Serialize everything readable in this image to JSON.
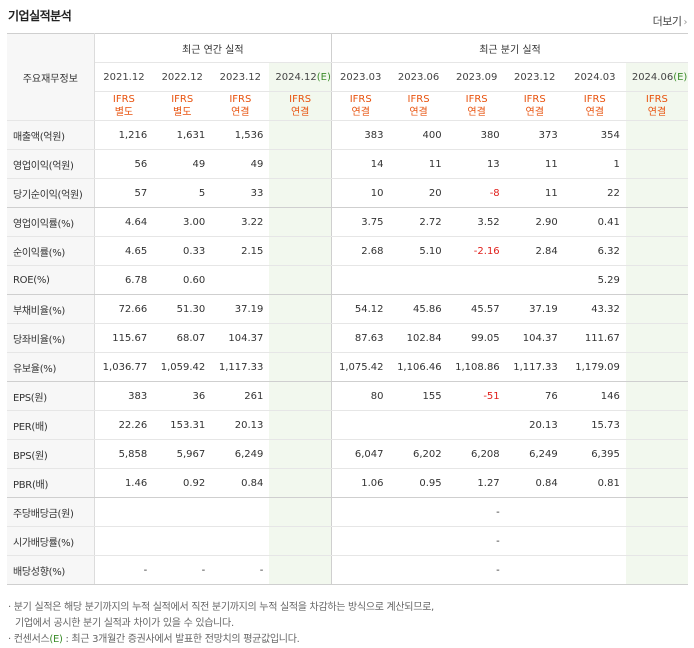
{
  "header": {
    "title": "기업실적분석",
    "more_label": "더보기"
  },
  "table": {
    "row_header_label": "주요재무정보",
    "annual_group_label": "최근 연간 실적",
    "quarter_group_label": "최근 분기 실적",
    "periods": [
      {
        "label": "2021.12",
        "ifrs": "IFRS",
        "basis": "별도",
        "estimate": false
      },
      {
        "label": "2022.12",
        "ifrs": "IFRS",
        "basis": "별도",
        "estimate": false
      },
      {
        "label": "2023.12",
        "ifrs": "IFRS",
        "basis": "연결",
        "estimate": false
      },
      {
        "label": "2024.12",
        "est_mark": "(E)",
        "ifrs": "IFRS",
        "basis": "연결",
        "estimate": true
      },
      {
        "label": "2023.03",
        "ifrs": "IFRS",
        "basis": "연결",
        "estimate": false
      },
      {
        "label": "2023.06",
        "ifrs": "IFRS",
        "basis": "연결",
        "estimate": false
      },
      {
        "label": "2023.09",
        "ifrs": "IFRS",
        "basis": "연결",
        "estimate": false
      },
      {
        "label": "2023.12",
        "ifrs": "IFRS",
        "basis": "연결",
        "estimate": false
      },
      {
        "label": "2024.03",
        "ifrs": "IFRS",
        "basis": "연결",
        "estimate": false
      },
      {
        "label": "2024.06",
        "est_mark": "(E)",
        "ifrs": "IFRS",
        "basis": "연결",
        "estimate": true
      }
    ],
    "rows": [
      {
        "label": "매출액(억원)",
        "values": [
          "1,216",
          "1,631",
          "1,536",
          "",
          "383",
          "400",
          "380",
          "373",
          "354",
          ""
        ]
      },
      {
        "label": "영업이익(억원)",
        "values": [
          "56",
          "49",
          "49",
          "",
          "14",
          "11",
          "13",
          "11",
          "1",
          ""
        ]
      },
      {
        "label": "당기순이익(억원)",
        "values": [
          "57",
          "5",
          "33",
          "",
          "10",
          "20",
          "-8",
          "11",
          "22",
          ""
        ]
      },
      {
        "label": "영업이익률(%)",
        "values": [
          "4.64",
          "3.00",
          "3.22",
          "",
          "3.75",
          "2.72",
          "3.52",
          "2.90",
          "0.41",
          ""
        ]
      },
      {
        "label": "순이익률(%)",
        "values": [
          "4.65",
          "0.33",
          "2.15",
          "",
          "2.68",
          "5.10",
          "-2.16",
          "2.84",
          "6.32",
          ""
        ]
      },
      {
        "label": "ROE(%)",
        "values": [
          "6.78",
          "0.60",
          "",
          "",
          "",
          "",
          "",
          "",
          "5.29",
          ""
        ]
      },
      {
        "label": "부채비율(%)",
        "values": [
          "72.66",
          "51.30",
          "37.19",
          "",
          "54.12",
          "45.86",
          "45.57",
          "37.19",
          "43.32",
          ""
        ]
      },
      {
        "label": "당좌비율(%)",
        "values": [
          "115.67",
          "68.07",
          "104.37",
          "",
          "87.63",
          "102.84",
          "99.05",
          "104.37",
          "111.67",
          ""
        ]
      },
      {
        "label": "유보율(%)",
        "values": [
          "1,036.77",
          "1,059.42",
          "1,117.33",
          "",
          "1,075.42",
          "1,106.46",
          "1,108.86",
          "1,117.33",
          "1,179.09",
          ""
        ]
      },
      {
        "label": "EPS(원)",
        "values": [
          "383",
          "36",
          "261",
          "",
          "80",
          "155",
          "-51",
          "76",
          "146",
          ""
        ]
      },
      {
        "label": "PER(배)",
        "values": [
          "22.26",
          "153.31",
          "20.13",
          "",
          "",
          "",
          "",
          "20.13",
          "15.73",
          ""
        ]
      },
      {
        "label": "BPS(원)",
        "values": [
          "5,858",
          "5,967",
          "6,249",
          "",
          "6,047",
          "6,202",
          "6,208",
          "6,249",
          "6,395",
          ""
        ]
      },
      {
        "label": "PBR(배)",
        "values": [
          "1.46",
          "0.92",
          "0.84",
          "",
          "1.06",
          "0.95",
          "1.27",
          "0.84",
          "0.81",
          ""
        ]
      },
      {
        "label": "주당배당금(원)",
        "values": [
          "",
          "",
          "",
          "",
          "",
          "",
          "-",
          "",
          "",
          ""
        ]
      },
      {
        "label": "시가배당률(%)",
        "values": [
          "",
          "",
          "",
          "",
          "",
          "",
          "-",
          "",
          "",
          ""
        ]
      },
      {
        "label": "배당성향(%)",
        "values": [
          "-",
          "-",
          "-",
          "",
          "",
          "",
          "-",
          "",
          "",
          ""
        ]
      }
    ]
  },
  "notes": {
    "line1": "분기 실적은 해당 분기까지의 누적 실적에서 직전 분기까지의 누적 실적을 차감하는 방식으로 계산되므로,",
    "line2": "기업에서 공시한 분기 실적과 차이가 있을 수 있습니다.",
    "line3_prefix": "컨센서스",
    "line3_mark": "(E)",
    "line3_rest": " : 최근 3개월간 증권사에서 발표한 전망치의 평균값입니다."
  },
  "colors": {
    "ifrs": "#e8530f",
    "negative": "#e0201c",
    "estimate_bg": "#f2f8ee",
    "estimate_mark": "#3b8c2a"
  }
}
